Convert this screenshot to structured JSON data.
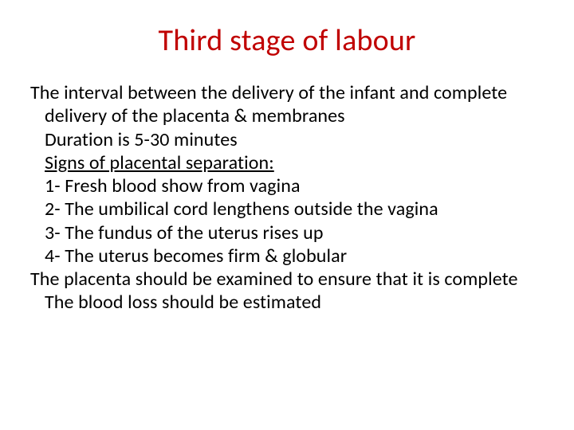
{
  "slide": {
    "title": "Third stage of labour",
    "title_color": "#c00000",
    "title_fontsize": 38,
    "title_fontweight": 400,
    "body_color": "#000000",
    "body_fontsize": 24,
    "body_lineheight": 1.22,
    "body_fontweight": 400,
    "background_color": "#ffffff",
    "lines": [
      {
        "text": "The interval between the delivery of the infant and complete delivery of the placenta & membranes",
        "indent": 0
      },
      {
        "text": "Duration is 5-30 minutes",
        "indent": 1
      },
      {
        "text_underline": "Signs of placental separation:",
        "indent": 1
      },
      {
        "text": "1- Fresh blood show from vagina",
        "indent": 1
      },
      {
        "text": "2- The umbilical cord lengthens outside the vagina",
        "indent": 1
      },
      {
        "text": "3- The fundus of the uterus rises up",
        "indent": 1
      },
      {
        "text": "4- The uterus becomes firm & globular",
        "indent": 1
      },
      {
        "text": "The placenta should be examined to ensure that it is complete",
        "indent": 0
      },
      {
        "text": "The blood loss should be estimated",
        "indent": 1
      }
    ]
  }
}
